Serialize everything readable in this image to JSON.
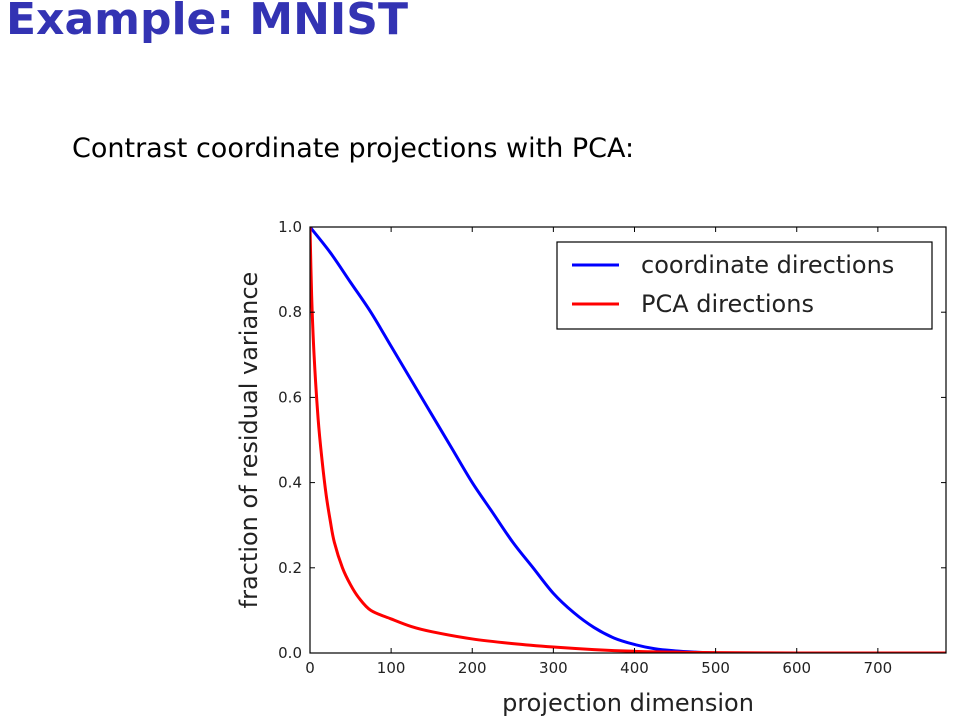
{
  "slide": {
    "title": "Example: MNIST",
    "intro": "Contrast coordinate projections with PCA:"
  },
  "colors": {
    "title": "#3333b3"
  },
  "chart_data": {
    "type": "line",
    "xlabel": "projection dimension",
    "ylabel": "fraction of residual variance",
    "xlim": [
      0,
      784
    ],
    "ylim": [
      0,
      1.0
    ],
    "xticks": [
      0,
      100,
      200,
      300,
      400,
      500,
      600,
      700
    ],
    "yticks": [
      0.0,
      0.2,
      0.4,
      0.6,
      0.8,
      1.0
    ],
    "xtick_labels": [
      "0",
      "100",
      "200",
      "300",
      "400",
      "500",
      "600",
      "700"
    ],
    "ytick_labels": [
      "0.0",
      "0.2",
      "0.4",
      "0.6",
      "0.8",
      "1.0"
    ],
    "grid": false,
    "legend_position": "top-right",
    "series": [
      {
        "name": "coordinate directions",
        "color": "#0000ff",
        "x": [
          0,
          25,
          50,
          75,
          100,
          125,
          150,
          175,
          200,
          225,
          250,
          275,
          300,
          325,
          350,
          375,
          400,
          425,
          450,
          475,
          500,
          550,
          600,
          650,
          700,
          784
        ],
        "y": [
          1.0,
          0.94,
          0.87,
          0.8,
          0.72,
          0.64,
          0.56,
          0.48,
          0.4,
          0.33,
          0.26,
          0.2,
          0.14,
          0.095,
          0.06,
          0.035,
          0.02,
          0.01,
          0.005,
          0.002,
          0.0,
          0.0,
          0.0,
          0.0,
          0.0,
          0.0
        ]
      },
      {
        "name": "PCA directions",
        "color": "#ff0000",
        "x": [
          0,
          2,
          5,
          10,
          15,
          20,
          25,
          30,
          40,
          50,
          60,
          75,
          100,
          125,
          150,
          200,
          250,
          300,
          350,
          400,
          450,
          500,
          600,
          700,
          784
        ],
        "y": [
          1.0,
          0.84,
          0.7,
          0.55,
          0.45,
          0.37,
          0.31,
          0.26,
          0.2,
          0.16,
          0.13,
          0.1,
          0.08,
          0.062,
          0.05,
          0.033,
          0.022,
          0.014,
          0.008,
          0.004,
          0.002,
          0.001,
          0.0,
          0.0,
          0.0
        ]
      }
    ]
  }
}
